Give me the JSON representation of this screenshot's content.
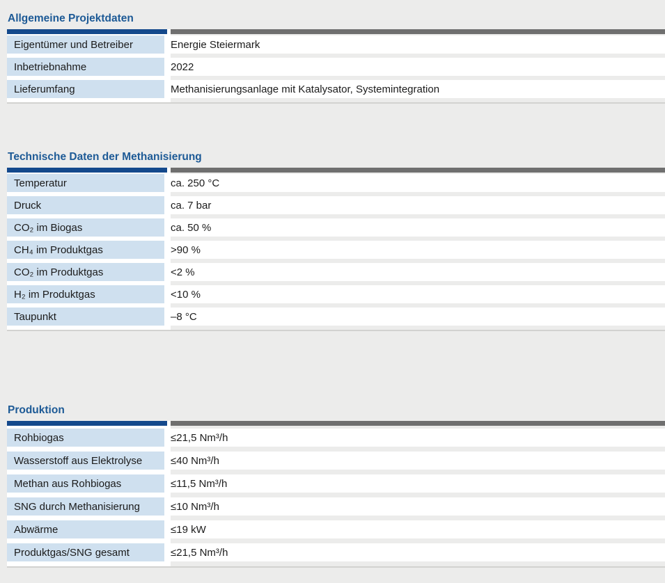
{
  "page": {
    "background_color": "#ECECEB",
    "language": "de"
  },
  "colors": {
    "heading_blue": "#1D5A96",
    "header_bar_blue": "#14498C",
    "header_bar_gray": "#6F6F6F",
    "label_cell_blue": "#CFE0EF",
    "text": "#1B1B1B"
  },
  "sections": [
    {
      "title": "Allgemeine Projektdaten",
      "rows": [
        {
          "label": "Eigentümer und Betreiber",
          "value": "Energie Steiermark"
        },
        {
          "label": "Inbetriebnahme",
          "value": "2022"
        },
        {
          "label": "Lieferumfang",
          "value": "Methanisierungsanlage mit Katalysator, Systemintegration"
        }
      ]
    },
    {
      "title": "Technische Daten der Methanisierung",
      "rows": [
        {
          "label": "Temperatur",
          "value": "ca. 250 °C"
        },
        {
          "label": "Druck",
          "value": "ca. 7 bar"
        },
        {
          "label": "CO₂ im Biogas",
          "value": "ca. 50 %"
        },
        {
          "label": "CH₄ im Produktgas",
          "value": ">90 %"
        },
        {
          "label": "CO₂ im Produktgas",
          "value": "<2 %"
        },
        {
          "label": "H₂ im Produktgas",
          "value": "<10 %"
        },
        {
          "label": "Taupunkt",
          "value": "–8 °C"
        }
      ]
    },
    {
      "title": "Produktion",
      "rows": [
        {
          "label": "Rohbiogas",
          "value": "≤21,5 Nm³/h"
        },
        {
          "label": "Wasserstoff aus Elektrolyse",
          "value": "≤40 Nm³/h"
        },
        {
          "label": "Methan aus Rohbiogas",
          "value": "≤11,5 Nm³/h"
        },
        {
          "label": "SNG durch Methanisierung",
          "value": "≤10 Nm³/h"
        },
        {
          "label": "Abwärme",
          "value": "≤19 kW"
        },
        {
          "label": "Produktgas/SNG gesamt",
          "value": "≤21,5 Nm³/h"
        }
      ]
    }
  ]
}
